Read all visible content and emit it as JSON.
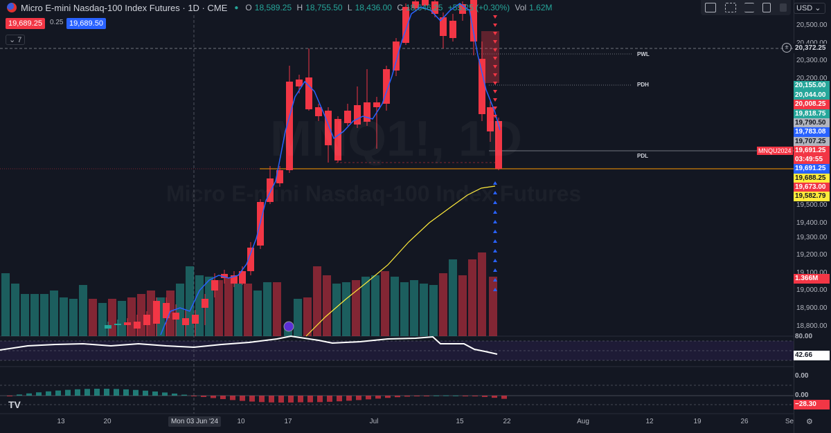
{
  "header": {
    "symbol": "Micro E-mini Nasdaq-100 Index Futures · 1D · CME",
    "o_label": "O",
    "o_value": "18,589.25",
    "h_label": "H",
    "h_value": "18,755.50",
    "l_label": "L",
    "l_value": "18,436.00",
    "c_label": "C",
    "c_value": "18,646.25",
    "change": "+55.25 (+0.30%)",
    "vol_label": "Vol",
    "vol_value": "1.62M"
  },
  "order": {
    "sell_price": "19,689.25",
    "spread": "0.25",
    "buy_price": "19,689.50"
  },
  "indicators_toggle": "7",
  "currency": "USD",
  "watermark": {
    "line1": "MNQ1!, 1D",
    "line2": "Micro E-mini Nasdaq-100 Index Futures"
  },
  "levels": {
    "pwl": "PWL",
    "pdh": "PDH",
    "pdl": "PDL"
  },
  "contract_label": "MNQU2024",
  "price_axis": {
    "ticks": [
      "20,500.00",
      "20,400.00",
      "20,300.00",
      "20,200.00",
      "20,100.00",
      "20,000.00",
      "19,900.00",
      "19,800.00",
      "19,700.00",
      "19,600.00",
      "19,500.00",
      "19,400.00",
      "19,300.00",
      "19,200.00",
      "19,100.00",
      "19,000.00",
      "18,900.00",
      "18,800.00"
    ],
    "labels": [
      {
        "text": "20,372.25",
        "color": "#d1d4dc",
        "bg": "#131722"
      },
      {
        "text": "20,155.00",
        "color": "#ffffff",
        "bg": "#26a69a"
      },
      {
        "text": "20,044.00",
        "color": "#ffffff",
        "bg": "#26a69a"
      },
      {
        "text": "20,008.25",
        "color": "#ffffff",
        "bg": "#f23645"
      },
      {
        "text": "19,818.75",
        "color": "#ffffff",
        "bg": "#26a69a"
      },
      {
        "text": "19,790.50",
        "color": "#131722",
        "bg": "#b2b5be"
      },
      {
        "text": "19,783.08",
        "color": "#ffffff",
        "bg": "#2962ff"
      },
      {
        "text": "19,707.25",
        "color": "#131722",
        "bg": "#b2b5be"
      },
      {
        "text": "19,691.25",
        "color": "#ffffff",
        "bg": "#f23645"
      },
      {
        "text": "03:49:55",
        "color": "#ffffff",
        "bg": "#f23645"
      },
      {
        "text": "19,691.25",
        "color": "#ffffff",
        "bg": "#2962ff"
      },
      {
        "text": "19,688.25",
        "color": "#131722",
        "bg": "#ffeb3b"
      },
      {
        "text": "19,673.00",
        "color": "#ffffff",
        "bg": "#f23645"
      },
      {
        "text": "19,582.79",
        "color": "#131722",
        "bg": "#ffeb3b"
      },
      {
        "text": "1.366M",
        "color": "#ffffff",
        "bg": "#f23645"
      }
    ],
    "rsi_ticks": [
      "80.00",
      "42.66"
    ],
    "osc_ticks": [
      "0.00",
      "0.00",
      "−28.30"
    ]
  },
  "date_axis": {
    "ticks": [
      "13",
      "20",
      "Mon 03 Jun '24",
      "10",
      "17",
      "Jul",
      "15",
      "22",
      "Aug",
      "12",
      "19",
      "26",
      "Se"
    ]
  }
}
